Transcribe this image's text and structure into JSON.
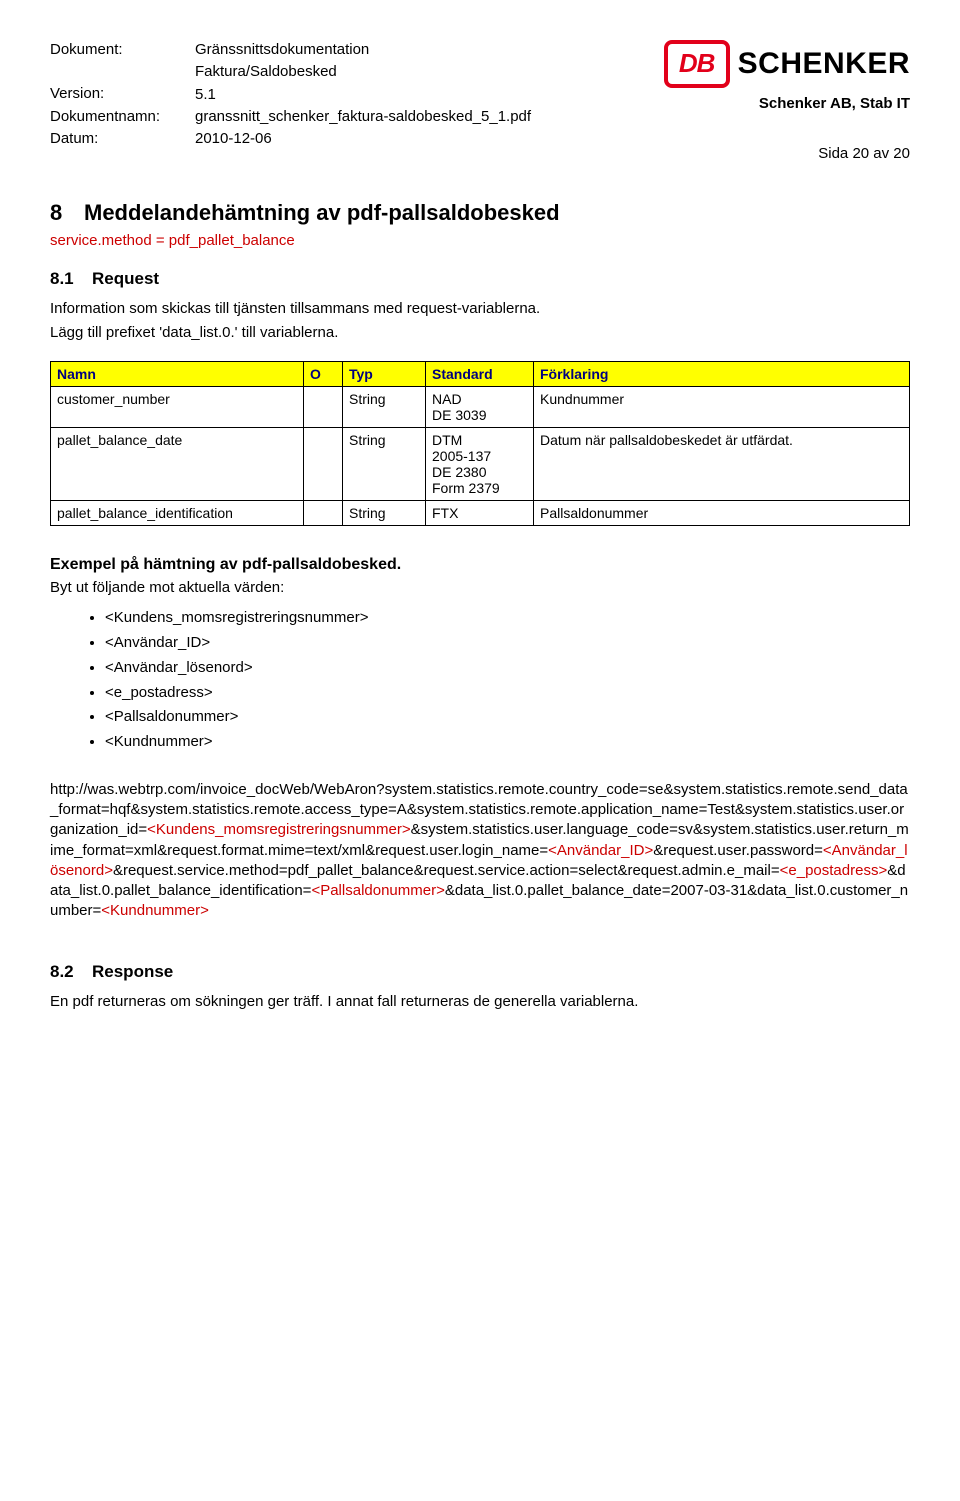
{
  "header": {
    "labels": {
      "dokument": "Dokument:",
      "version": "Version:",
      "dokumentnamn": "Dokumentnamn:",
      "datum": "Datum:"
    },
    "values": {
      "dokument_line1": "Gränssnittsdokumentation",
      "dokument_line2": "Faktura/Saldobesked",
      "version": "5.1",
      "dokumentnamn": "granssnitt_schenker_faktura-saldobesked_5_1.pdf",
      "datum": "2010-12-06"
    },
    "right": {
      "db": "DB",
      "schenker": "SCHENKER",
      "stabit": "Schenker AB, Stab IT",
      "sida": "Sida 20 av 20"
    }
  },
  "section8": {
    "num": "8",
    "title": "Meddelandehämtning av pdf-pallsaldobesked",
    "service_method": "service.method = pdf_pallet_balance"
  },
  "section81": {
    "num": "8.1",
    "title": "Request",
    "intro1": "Information som skickas till tjänsten tillsammans med request-variablerna.",
    "intro2": "Lägg till prefixet 'data_list.0.' till variablerna."
  },
  "table": {
    "headers": {
      "namn": "Namn",
      "o": "O",
      "typ": "Typ",
      "standard": "Standard",
      "forklaring": "Förklaring"
    },
    "rows": [
      {
        "namn": "customer_number",
        "o": "",
        "typ": "String",
        "standard": [
          "NAD",
          "DE 3039"
        ],
        "forklaring": "Kundnummer"
      },
      {
        "namn": "pallet_balance_date",
        "o": "",
        "typ": "String",
        "standard": [
          "DTM",
          "2005-137",
          "DE 2380",
          "Form 2379"
        ],
        "forklaring": "Datum när pallsaldobeskedet är utfärdat."
      },
      {
        "namn": "pallet_balance_identification",
        "o": "",
        "typ": "String",
        "standard": [
          "FTX"
        ],
        "forklaring": "Pallsaldonummer"
      }
    ]
  },
  "example": {
    "heading": "Exempel på hämtning av pdf-pallsaldobesked.",
    "bytut": "Byt ut följande mot aktuella värden:",
    "bullets": [
      "<Kundens_momsregistreringsnummer>",
      "<Användar_ID>",
      "<Användar_lösenord>",
      "<e_postadress>",
      "<Pallsaldonummer>",
      "<Kundnummer>"
    ]
  },
  "url": {
    "segments": [
      {
        "t": "http://was.webtrp.com/invoice_docWeb/WebAron?system.statistics.remote.country_code=se&system.statistics.remote.send_data_format=hqf&system.statistics.remote.access_type=A&system.statistics.remote.application_name=Test&system.statistics.user.organization_id=",
        "red": false
      },
      {
        "t": "<Kundens_momsregistreringsnummer>",
        "red": true
      },
      {
        "t": "&system.statistics.user.language_code=sv&system.statistics.user.return_mime_format=xml&request.format.mime=text/xml&request.user.login_name=",
        "red": false
      },
      {
        "t": "<Användar_ID>",
        "red": true
      },
      {
        "t": "&request.user.password=",
        "red": false
      },
      {
        "t": "<Användar_lösenord>",
        "red": true
      },
      {
        "t": "&request.service.method=pdf_pallet_balance&request.service.action=select&request.admin.e_mail=",
        "red": false
      },
      {
        "t": "<e_postadress>",
        "red": true
      },
      {
        "t": "&data_list.0.pallet_balance_identification=",
        "red": false
      },
      {
        "t": "<Pallsaldonummer>",
        "red": true
      },
      {
        "t": "&data_list.0.pallet_balance_date=2007-03-31&data_list.0.customer_number=",
        "red": false
      },
      {
        "t": "<Kundnummer>",
        "red": true
      }
    ]
  },
  "section82": {
    "num": "8.2",
    "title": "Response",
    "text": "En pdf returneras om sökningen ger träff. I annat fall returneras de generella variablerna."
  }
}
